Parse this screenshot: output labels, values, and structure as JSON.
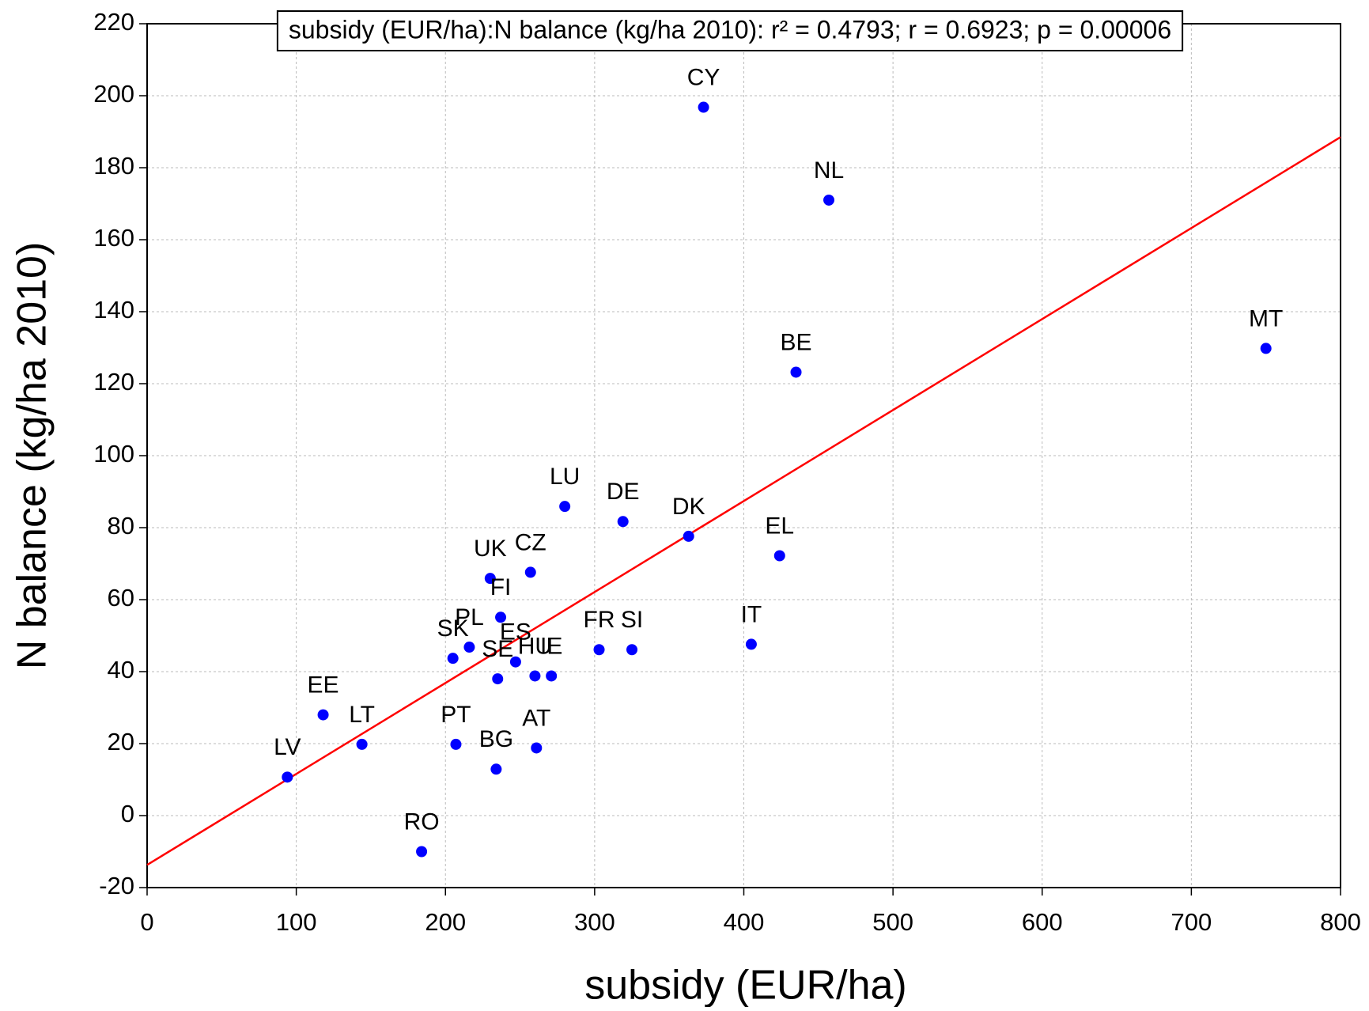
{
  "chart_data": {
    "type": "scatter",
    "annotation": "subsidy (EUR/ha):N balance (kg/ha 2010):  r² = 0.4793;  r = 0.6923; p = 0.00006",
    "x_label": "subsidy (EUR/ha)",
    "y_label": "N balance (kg/ha 2010)",
    "labels": [
      "CY",
      "NL",
      "MT",
      "BE",
      "LU",
      "DE",
      "DK",
      "EL",
      "UK",
      "CZ",
      "FI",
      "IT",
      "FR",
      "SI",
      "PL",
      "SK",
      "ES",
      "SE",
      "HU",
      "IE",
      "EE",
      "LT",
      "LV",
      "PT",
      "BG",
      "AT",
      "RO"
    ],
    "x": [
      373,
      457,
      750,
      435,
      280,
      319,
      363,
      424,
      230,
      257,
      237,
      405,
      303,
      325,
      216,
      205,
      247,
      235,
      260,
      271,
      118,
      144,
      94,
      207,
      234,
      261,
      184
    ],
    "y": [
      196.8,
      171,
      129.8,
      123.2,
      85.9,
      81.7,
      77.6,
      72.2,
      65.9,
      67.6,
      55.1,
      47.6,
      46.1,
      46.1,
      46.8,
      43.7,
      42.7,
      38,
      38.8,
      38.8,
      28,
      19.8,
      10.7,
      19.8,
      12.9,
      18.8,
      -10
    ],
    "color": "#0000ff",
    "fit_line": {
      "x": [
        0,
        800
      ],
      "y": [
        -13.7,
        188.5
      ],
      "color": "#ff0000"
    },
    "xlim": [
      0,
      800
    ],
    "xticks": [
      0,
      100,
      200,
      300,
      400,
      500,
      600,
      700,
      800
    ],
    "ylim": [
      -20,
      220
    ],
    "yticks": [
      -20,
      0,
      20,
      40,
      60,
      80,
      100,
      120,
      140,
      160,
      180,
      200,
      220
    ],
    "grid": true
  }
}
